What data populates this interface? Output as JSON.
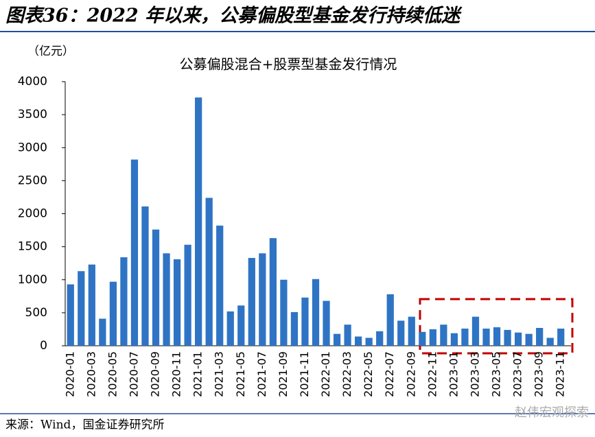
{
  "header": {
    "title": "图表36：2022 年以来，公募偏股型基金发行持续低迷"
  },
  "chart_data": {
    "type": "bar",
    "title": "公募偏股混合+股票型基金发行情况",
    "y_label": "（亿元）",
    "categories": [
      "2020-01",
      null,
      "2020-03",
      null,
      "2020-05",
      null,
      "2020-07",
      null,
      "2020-09",
      null,
      "2020-11",
      null,
      "2021-01",
      null,
      "2021-03",
      null,
      "2021-05",
      null,
      "2021-07",
      null,
      "2021-09",
      null,
      "2021-11",
      null,
      "2022-01",
      null,
      "2022-03",
      null,
      "2022-05",
      null,
      "2022-07",
      null,
      "2022-09",
      null,
      "2022-11",
      null,
      "2023-01",
      null,
      "2023-03",
      null,
      "2023-05",
      null,
      "2023-07",
      null,
      "2023-09",
      null,
      "2023-11"
    ],
    "values": [
      930,
      1130,
      1230,
      410,
      970,
      1340,
      2820,
      2110,
      1760,
      1400,
      1310,
      1530,
      3760,
      2240,
      1820,
      520,
      610,
      1330,
      1400,
      1630,
      1000,
      510,
      730,
      1010,
      680,
      180,
      320,
      140,
      120,
      220,
      780,
      380,
      440,
      210,
      250,
      320,
      190,
      260,
      440,
      260,
      280,
      240,
      200,
      180,
      270,
      120,
      260
    ],
    "color": "#2f74c4",
    "ylim": [
      0,
      4000
    ],
    "yticks": [
      0,
      500,
      1000,
      1500,
      2000,
      2500,
      3000,
      3500,
      4000
    ],
    "grid": false
  },
  "footer": {
    "source": "来源：Wind，国金证券研究所",
    "watermark": "赵伟宏观探索"
  }
}
